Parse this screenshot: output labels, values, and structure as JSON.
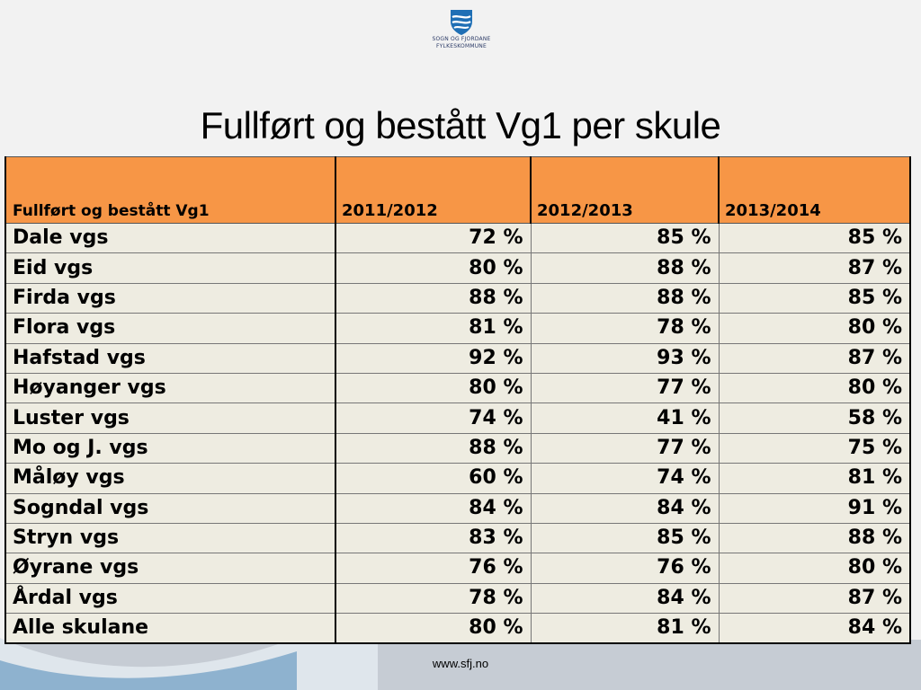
{
  "logo": {
    "line1": "SOGN OG FJORDANE",
    "line2": "FYLKESKOMMUNE"
  },
  "title": "Fullført og bestått Vg1 per skule",
  "table": {
    "headers": [
      "Fullført og bestått Vg1",
      "2011/2012",
      "2012/2013",
      "2013/2014"
    ],
    "rows": [
      [
        "Dale vgs",
        "72 %",
        "85 %",
        "85 %"
      ],
      [
        "Eid vgs",
        "80 %",
        "88 %",
        "87 %"
      ],
      [
        "Firda vgs",
        "88 %",
        "88 %",
        "85 %"
      ],
      [
        "Flora vgs",
        "81 %",
        "78 %",
        "80 %"
      ],
      [
        "Hafstad vgs",
        "92 %",
        "93 %",
        "87 %"
      ],
      [
        "Høyanger vgs",
        "80 %",
        "77 %",
        "80 %"
      ],
      [
        "Luster vgs",
        "74 %",
        "41 %",
        "58 %"
      ],
      [
        "Mo og J. vgs",
        "88 %",
        "77 %",
        "75 %"
      ],
      [
        "Måløy vgs",
        "60 %",
        "74 %",
        "81 %"
      ],
      [
        "Sogndal vgs",
        "84 %",
        "84 %",
        "91 %"
      ],
      [
        "Stryn vgs",
        "83 %",
        "85 %",
        "88 %"
      ],
      [
        "Øyrane vgs",
        "76 %",
        "76 %",
        "80 %"
      ],
      [
        "Årdal vgs",
        "78 %",
        "84 %",
        "87 %"
      ],
      [
        "Alle skulane",
        "80 %",
        "81 %",
        "84 %"
      ]
    ]
  },
  "footer": "www.sfj.no",
  "colors": {
    "header_fill": "#f79646",
    "cell_fill": "#eeece1",
    "logo_blue": "#1f6fb5"
  }
}
